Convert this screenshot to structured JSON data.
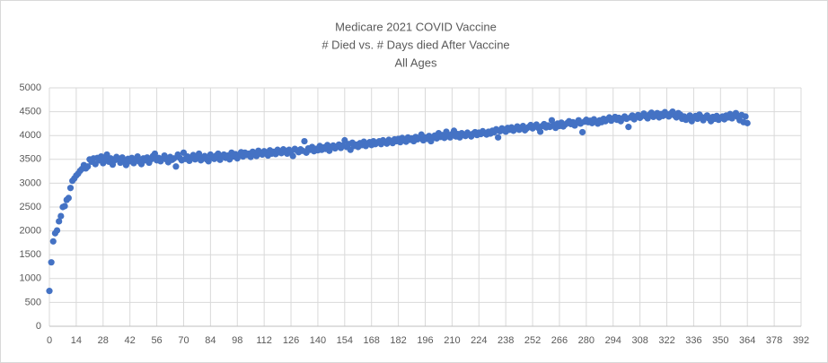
{
  "chart_data": {
    "type": "scatter",
    "title": [
      "Medicare 2021 COVID Vaccine",
      "# Died vs. # Days died After Vaccine",
      "All Ages"
    ],
    "color": "#4472c4",
    "grid": true,
    "xlim": [
      0,
      392
    ],
    "xticks": [
      0,
      14,
      28,
      42,
      56,
      70,
      84,
      98,
      112,
      126,
      140,
      154,
      168,
      182,
      196,
      210,
      224,
      238,
      252,
      266,
      280,
      294,
      308,
      322,
      336,
      350,
      364,
      378,
      392
    ],
    "ylim": [
      0,
      5000
    ],
    "yticks": [
      0,
      500,
      1000,
      1500,
      2000,
      2500,
      3000,
      3500,
      4000,
      4500,
      5000
    ],
    "x": [
      0,
      1,
      2,
      3,
      4,
      5,
      6,
      7,
      8,
      9,
      10,
      11,
      12,
      13,
      14,
      15,
      16,
      17,
      18,
      19,
      20,
      21,
      22,
      23,
      24,
      25,
      26,
      27,
      28,
      29,
      30,
      31,
      32,
      33,
      34,
      35,
      36,
      37,
      38,
      39,
      40,
      41,
      42,
      43,
      44,
      45,
      46,
      47,
      48,
      49,
      50,
      51,
      52,
      53,
      54,
      55,
      56,
      57,
      58,
      59,
      60,
      61,
      62,
      63,
      64,
      65,
      66,
      67,
      68,
      69,
      70,
      71,
      72,
      73,
      74,
      75,
      76,
      77,
      78,
      79,
      80,
      81,
      82,
      83,
      84,
      85,
      86,
      87,
      88,
      89,
      90,
      91,
      92,
      93,
      94,
      95,
      96,
      97,
      98,
      99,
      100,
      101,
      102,
      103,
      104,
      105,
      106,
      107,
      108,
      109,
      110,
      111,
      112,
      113,
      114,
      115,
      116,
      117,
      118,
      119,
      120,
      121,
      122,
      123,
      124,
      125,
      126,
      127,
      128,
      129,
      130,
      131,
      132,
      133,
      134,
      135,
      136,
      137,
      138,
      139,
      140,
      141,
      142,
      143,
      144,
      145,
      146,
      147,
      148,
      149,
      150,
      151,
      152,
      153,
      154,
      155,
      156,
      157,
      158,
      159,
      160,
      161,
      162,
      163,
      164,
      165,
      166,
      167,
      168,
      169,
      170,
      171,
      172,
      173,
      174,
      175,
      176,
      177,
      178,
      179,
      180,
      181,
      182,
      183,
      184,
      185,
      186,
      187,
      188,
      189,
      190,
      191,
      192,
      193,
      194,
      195,
      196,
      197,
      198,
      199,
      200,
      201,
      202,
      203,
      204,
      205,
      206,
      207,
      208,
      209,
      210,
      211,
      212,
      213,
      214,
      215,
      216,
      217,
      218,
      219,
      220,
      221,
      222,
      223,
      224,
      225,
      226,
      227,
      228,
      229,
      230,
      231,
      232,
      233,
      234,
      235,
      236,
      237,
      238,
      239,
      240,
      241,
      242,
      243,
      244,
      245,
      246,
      247,
      248,
      249,
      250,
      251,
      252,
      253,
      254,
      255,
      256,
      257,
      258,
      259,
      260,
      261,
      262,
      263,
      264,
      265,
      266,
      267,
      268,
      269,
      270,
      271,
      272,
      273,
      274,
      275,
      276,
      277,
      278,
      279,
      280,
      281,
      282,
      283,
      284,
      285,
      286,
      287,
      288,
      289,
      290,
      291,
      292,
      293,
      294,
      295,
      296,
      297,
      298,
      299,
      300,
      301,
      302,
      303,
      304,
      305,
      306,
      307,
      308,
      309,
      310,
      311,
      312,
      313,
      314,
      315,
      316,
      317,
      318,
      319,
      320,
      321,
      322,
      323,
      324,
      325,
      326,
      327,
      328,
      329,
      330,
      331,
      332,
      333,
      334,
      335,
      336,
      337,
      338,
      339,
      340,
      341,
      342,
      343,
      344,
      345,
      346,
      347,
      348,
      349,
      350,
      351,
      352,
      353,
      354,
      355,
      356,
      357,
      358,
      359,
      360,
      361,
      362,
      363,
      364
    ],
    "values": [
      740,
      1340,
      1780,
      1950,
      2010,
      2200,
      2310,
      2500,
      2520,
      2650,
      2690,
      2900,
      3050,
      3100,
      3160,
      3200,
      3260,
      3300,
      3380,
      3310,
      3350,
      3500,
      3450,
      3520,
      3400,
      3530,
      3480,
      3560,
      3420,
      3500,
      3600,
      3450,
      3520,
      3390,
      3480,
      3550,
      3500,
      3430,
      3540,
      3470,
      3380,
      3510,
      3460,
      3530,
      3420,
      3490,
      3560,
      3450,
      3400,
      3520,
      3480,
      3540,
      3430,
      3500,
      3570,
      3620,
      3480,
      3530,
      3460,
      3510,
      3580,
      3500,
      3440,
      3550,
      3490,
      3520,
      3350,
      3600,
      3530,
      3480,
      3640,
      3510,
      3560,
      3470,
      3540,
      3590,
      3500,
      3550,
      3620,
      3480,
      3530,
      3570,
      3500,
      3460,
      3600,
      3540,
      3510,
      3580,
      3620,
      3490,
      3550,
      3600,
      3530,
      3580,
      3500,
      3640,
      3560,
      3610,
      3520,
      3590,
      3650,
      3560,
      3640,
      3590,
      3620,
      3550,
      3660,
      3600,
      3570,
      3680,
      3620,
      3600,
      3670,
      3640,
      3580,
      3690,
      3620,
      3660,
      3610,
      3700,
      3650,
      3630,
      3710,
      3680,
      3620,
      3700,
      3660,
      3570,
      3720,
      3690,
      3650,
      3710,
      3680,
      3880,
      3640,
      3730,
      3700,
      3760,
      3670,
      3720,
      3690,
      3780,
      3700,
      3750,
      3720,
      3800,
      3680,
      3760,
      3790,
      3730,
      3770,
      3810,
      3740,
      3790,
      3900,
      3760,
      3820,
      3700,
      3850,
      3780,
      3810,
      3760,
      3840,
      3800,
      3870,
      3780,
      3830,
      3860,
      3800,
      3880,
      3820,
      3850,
      3880,
      3820,
      3900,
      3860,
      3830,
      3910,
      3870,
      3840,
      3920,
      3880,
      3930,
      3860,
      3950,
      3900,
      3870,
      3960,
      3910,
      3940,
      3880,
      3970,
      3920,
      3950,
      4020,
      3900,
      3960,
      3930,
      3990,
      3880,
      3950,
      4000,
      3940,
      4050,
      3970,
      4010,
      3950,
      4080,
      3990,
      3960,
      4030,
      4100,
      3980,
      4030,
      3960,
      4050,
      4010,
      3990,
      4060,
      4020,
      3980,
      4040,
      4070,
      4010,
      4060,
      4030,
      4090,
      4050,
      4020,
      4080,
      4040,
      4100,
      4070,
      4130,
      3960,
      4090,
      4150,
      4110,
      4080,
      4160,
      4120,
      4170,
      4100,
      4140,
      4190,
      4120,
      4160,
      4200,
      4110,
      4150,
      4180,
      4220,
      4150,
      4190,
      4230,
      4160,
      4080,
      4200,
      4240,
      4170,
      4210,
      4180,
      4320,
      4230,
      4160,
      4250,
      4200,
      4270,
      4190,
      4230,
      4260,
      4300,
      4240,
      4280,
      4210,
      4270,
      4320,
      4250,
      4070,
      4290,
      4330,
      4280,
      4310,
      4260,
      4340,
      4290,
      4250,
      4320,
      4280,
      4350,
      4300,
      4340,
      4380,
      4310,
      4350,
      4390,
      4330,
      4370,
      4300,
      4360,
      4400,
      4350,
      4180,
      4380,
      4420,
      4340,
      4390,
      4430,
      4370,
      4410,
      4460,
      4400,
      4360,
      4440,
      4480,
      4390,
      4420,
      4470,
      4380,
      4450,
      4410,
      4490,
      4430,
      4400,
      4460,
      4500,
      4420,
      4380,
      4470,
      4440,
      4350,
      4400,
      4330,
      4380,
      4420,
      4300,
      4370,
      4410,
      4350,
      4440,
      4390,
      4320,
      4380,
      4420,
      4360,
      4300,
      4390,
      4350,
      4410,
      4330,
      4370,
      4400,
      4340,
      4420,
      4380,
      4450,
      4360,
      4410,
      4470,
      4390,
      4320,
      4430,
      4280,
      4400,
      4260
    ]
  }
}
